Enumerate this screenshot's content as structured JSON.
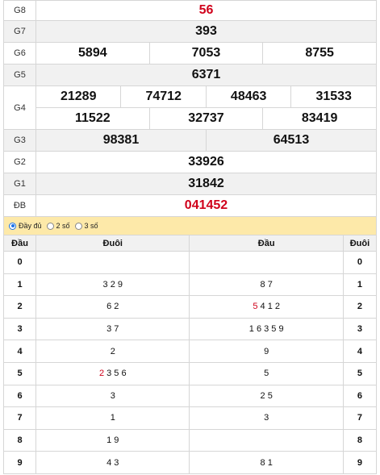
{
  "results": {
    "g8": {
      "label": "G8",
      "value": "56"
    },
    "g7": {
      "label": "G7",
      "value": "393"
    },
    "g6": {
      "label": "G6",
      "values": [
        "5894",
        "7053",
        "8755"
      ]
    },
    "g5": {
      "label": "G5",
      "value": "6371"
    },
    "g4": {
      "label": "G4",
      "row1": [
        "21289",
        "74712",
        "48463",
        "31533"
      ],
      "row2": [
        "11522",
        "32737",
        "83419"
      ]
    },
    "g3": {
      "label": "G3",
      "values": [
        "98381",
        "64513"
      ]
    },
    "g2": {
      "label": "G2",
      "value": "33926"
    },
    "g1": {
      "label": "G1",
      "value": "31842"
    },
    "db": {
      "label": "ĐB",
      "value": "041452"
    }
  },
  "options": [
    {
      "label": "Đầy đủ",
      "checked": true
    },
    {
      "label": "2 số",
      "checked": false
    },
    {
      "label": "3 số",
      "checked": false
    }
  ],
  "loto": {
    "headers": [
      "Đầu",
      "Đuôi",
      "Đầu",
      "Đuôi"
    ],
    "rows": [
      {
        "dau": "0",
        "duoi_tail": "",
        "dau_head": "",
        "duoi": "0"
      },
      {
        "dau": "1",
        "duoi_tail": "3 2 9",
        "dau_head": "8 7",
        "duoi": "1"
      },
      {
        "dau": "2",
        "duoi_tail": "6 2",
        "dau_head_red": "5",
        "dau_head": " 4 1 2",
        "duoi": "2"
      },
      {
        "dau": "3",
        "duoi_tail": "3 7",
        "dau_head": "1 6 3 5 9",
        "duoi": "3"
      },
      {
        "dau": "4",
        "duoi_tail": "2",
        "dau_head": "9",
        "duoi": "4"
      },
      {
        "dau": "5",
        "duoi_tail_red": "2",
        "duoi_tail": " 3 5 6",
        "dau_head": "5",
        "duoi": "5"
      },
      {
        "dau": "6",
        "duoi_tail": "3",
        "dau_head": "2 5",
        "duoi": "6"
      },
      {
        "dau": "7",
        "duoi_tail": "1",
        "dau_head": "3",
        "duoi": "7"
      },
      {
        "dau": "8",
        "duoi_tail": "1 9",
        "dau_head": "",
        "duoi": "8"
      },
      {
        "dau": "9",
        "duoi_tail": "4 3",
        "dau_head": "8 1",
        "duoi": "9"
      }
    ]
  },
  "colors": {
    "accent_red": "#d0021b",
    "options_bar": "#fde9a9"
  }
}
